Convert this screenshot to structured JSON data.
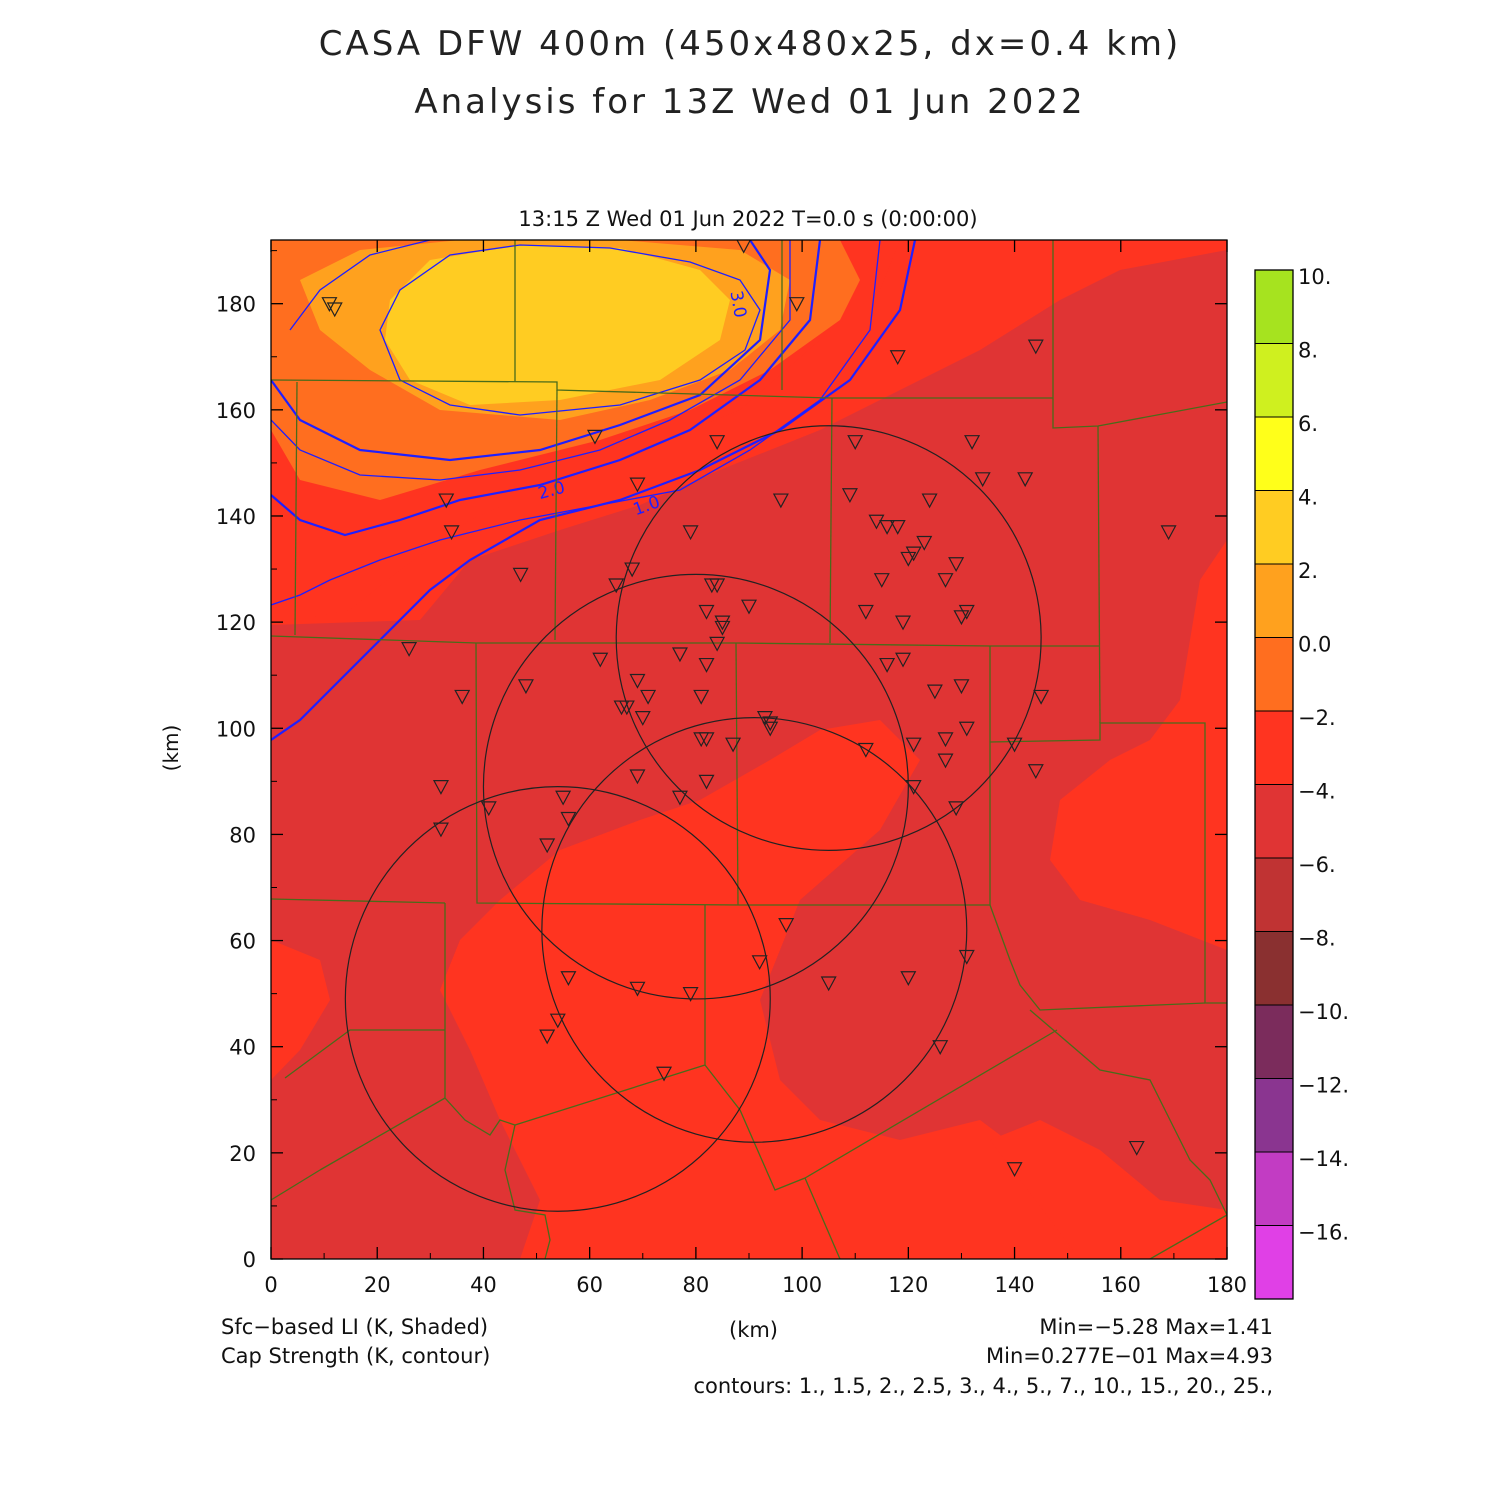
{
  "title_line1": "CASA DFW 400m (450x480x25, dx=0.4 km)",
  "title_line2": "Analysis for 13Z Wed 01 Jun 2022",
  "subtitle": "13:15 Z Wed 01 Jun 2022   T=0.0 s (0:00:00)",
  "axes": {
    "x_label": "(km)",
    "y_label": "(km)",
    "x_ticks": [
      "0",
      "20",
      "40",
      "60",
      "80",
      "100",
      "120",
      "140",
      "160",
      "180"
    ],
    "y_ticks": [
      "0",
      "20",
      "40",
      "60",
      "80",
      "100",
      "120",
      "140",
      "160",
      "180"
    ],
    "x_range": [
      0,
      180
    ],
    "y_range": [
      0,
      192
    ]
  },
  "colorbar": {
    "labels": [
      "10.",
      "8.",
      "6.",
      "4.",
      "2.",
      "0.0",
      "−2.",
      "−4.",
      "−6.",
      "−8.",
      "−10.",
      "−12.",
      "−14.",
      "−16."
    ],
    "colors": [
      "#a6e31f",
      "#cff01f",
      "#ffff1a",
      "#ffcc22",
      "#ffa11e",
      "#ff6e1f",
      "#ff3420",
      "#e03434",
      "#c03333",
      "#8a3030",
      "#7b2c5c",
      "#8a3590",
      "#c23cc3",
      "#e040e6"
    ]
  },
  "footer": {
    "left1": "Sfc−based LI (K, Shaded)",
    "left2": "Cap Strength (K, contour)",
    "center": "(km)",
    "right1": "Min=−5.28 Max=1.41",
    "right2": "Min=0.277E−01 Max=4.93",
    "right3": "contours: 1., 1.5, 2., 2.5, 3., 4., 5., 7., 10., 15., 20., 25.,"
  },
  "contour_labels": [
    "3.0",
    "2.0",
    "1.0"
  ],
  "radar_stations": [
    {
      "x": 105,
      "y": 117
    },
    {
      "x": 80,
      "y": 89
    },
    {
      "x": 91,
      "y": 62
    },
    {
      "x": 54,
      "y": 49
    }
  ],
  "stations": [
    [
      11,
      180
    ],
    [
      12,
      179
    ],
    [
      89,
      191
    ],
    [
      99,
      180
    ],
    [
      118,
      170
    ],
    [
      144,
      172
    ],
    [
      61,
      155
    ],
    [
      84,
      154
    ],
    [
      110,
      154
    ],
    [
      132,
      154
    ],
    [
      33,
      143
    ],
    [
      69,
      146
    ],
    [
      96,
      143
    ],
    [
      109,
      144
    ],
    [
      124,
      143
    ],
    [
      134,
      147
    ],
    [
      142,
      147
    ],
    [
      34,
      137
    ],
    [
      79,
      137
    ],
    [
      114,
      139
    ],
    [
      116,
      138
    ],
    [
      118,
      138
    ],
    [
      123,
      135
    ],
    [
      129,
      131
    ],
    [
      127,
      128
    ],
    [
      120,
      132
    ],
    [
      121,
      133
    ],
    [
      169,
      137
    ],
    [
      47,
      129
    ],
    [
      65,
      127
    ],
    [
      68,
      130
    ],
    [
      83,
      127
    ],
    [
      84,
      127
    ],
    [
      90,
      123
    ],
    [
      82,
      122
    ],
    [
      85,
      120
    ],
    [
      85,
      119
    ],
    [
      84,
      116
    ],
    [
      112,
      122
    ],
    [
      115,
      128
    ],
    [
      119,
      120
    ],
    [
      130,
      121
    ],
    [
      131,
      122
    ],
    [
      26,
      115
    ],
    [
      36,
      106
    ],
    [
      48,
      108
    ],
    [
      62,
      113
    ],
    [
      66,
      104
    ],
    [
      67,
      104
    ],
    [
      69,
      109
    ],
    [
      70,
      102
    ],
    [
      71,
      106
    ],
    [
      77,
      114
    ],
    [
      81,
      106
    ],
    [
      82,
      112
    ],
    [
      116,
      112
    ],
    [
      119,
      113
    ],
    [
      125,
      107
    ],
    [
      130,
      108
    ],
    [
      145,
      106
    ],
    [
      93,
      102
    ],
    [
      94,
      101
    ],
    [
      94,
      100
    ],
    [
      81,
      98
    ],
    [
      82,
      98
    ],
    [
      87,
      97
    ],
    [
      112,
      96
    ],
    [
      121,
      97
    ],
    [
      127,
      98
    ],
    [
      131,
      100
    ],
    [
      127,
      94
    ],
    [
      140,
      97
    ],
    [
      144,
      92
    ],
    [
      32,
      89
    ],
    [
      32,
      81
    ],
    [
      41,
      85
    ],
    [
      55,
      87
    ],
    [
      56,
      83
    ],
    [
      52,
      78
    ],
    [
      69,
      91
    ],
    [
      77,
      87
    ],
    [
      82,
      90
    ],
    [
      121,
      89
    ],
    [
      129,
      85
    ],
    [
      97,
      63
    ],
    [
      92,
      56
    ],
    [
      56,
      53
    ],
    [
      69,
      51
    ],
    [
      79,
      50
    ],
    [
      105,
      52
    ],
    [
      120,
      53
    ],
    [
      131,
      57
    ],
    [
      52,
      42
    ],
    [
      54,
      45
    ],
    [
      126,
      40
    ],
    [
      74,
      35
    ],
    [
      140,
      17
    ],
    [
      163,
      21
    ]
  ]
}
